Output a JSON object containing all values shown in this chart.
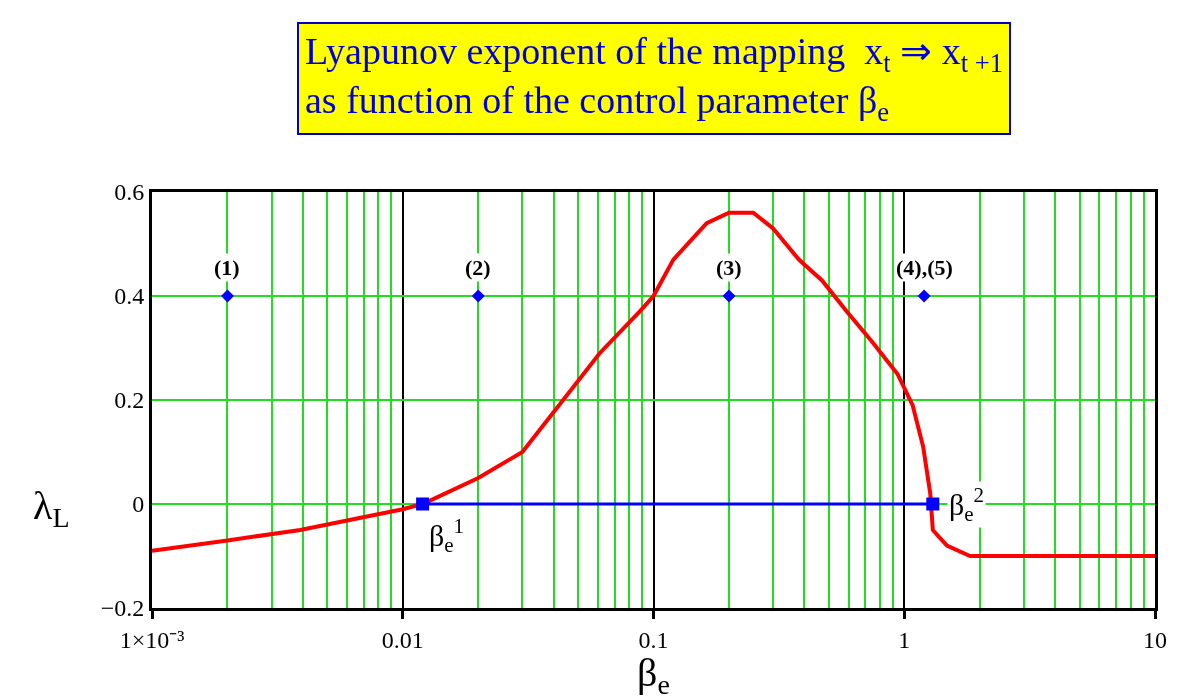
{
  "chart_data": {
    "type": "line",
    "title": "Lyapunov exponent of the mapping  x$_{t}$ ⇒ x$_{t +1}$\nas function of the control parameter β$_{e}$",
    "xlabel": "β$_{e}$",
    "ylabel": "λ$_{L}$",
    "log": "x",
    "grid": true,
    "xlim": [
      0.001,
      10
    ],
    "xticks": [
      {
        "value": 0.001,
        "label": "1×10⁻³"
      },
      0.01,
      0.1,
      1,
      10
    ],
    "ylim": [
      -0.2,
      0.6
    ],
    "yticks": [
      {
        "value": -0.2,
        "label": "−0.2"
      },
      0,
      0.2,
      0.4,
      0.6
    ],
    "series": [
      {
        "color": "#ff0000",
        "marker": "none",
        "x": [
          0.001,
          0.002,
          0.0039,
          0.01,
          0.012,
          0.02,
          0.03,
          0.042,
          0.061,
          0.088,
          0.1,
          0.12,
          0.163,
          0.2,
          0.25,
          0.3,
          0.38,
          0.47,
          0.59,
          0.75,
          0.94,
          1.08,
          1.19,
          1.27,
          1.3,
          1.48,
          1.83,
          2,
          10
        ],
        "values": [
          -0.09,
          -0.07,
          -0.05,
          -0.01,
          0,
          0.05,
          0.1,
          0.19,
          0.29,
          0.37,
          0.4,
          0.47,
          0.54,
          0.56,
          0.56,
          0.53,
          0.47,
          0.43,
          0.37,
          0.31,
          0.25,
          0.19,
          0.11,
          0.02,
          -0.05,
          -0.08,
          -0.1,
          -0.1,
          -0.1
        ]
      },
      {
        "type": "line",
        "color": "#0000ff",
        "marker": "square",
        "x": [
          0.012,
          1.3
        ],
        "values": [
          0,
          0
        ]
      },
      {
        "type": "scatter",
        "color": "#0000ff",
        "marker": "diamond",
        "x": [
          0.002,
          0.02,
          0.2,
          1.2
        ],
        "values": [
          0.4,
          0.4,
          0.4,
          0.4
        ]
      }
    ],
    "annotations": [
      {
        "text": "(1)",
        "x": 0.002,
        "y": 0.4
      },
      {
        "text": "(2)",
        "x": 0.02,
        "y": 0.4
      },
      {
        "text": "(3)",
        "x": 0.2,
        "y": 0.4
      },
      {
        "text": "(4),(5)",
        "x": 1.2,
        "y": 0.4
      },
      {
        "text": "β$_{e}$$^{1}$",
        "x": 0.012,
        "y": 0
      },
      {
        "text": "β$_{e}$$^{2}$",
        "x": 1.3,
        "y": 0
      }
    ]
  }
}
